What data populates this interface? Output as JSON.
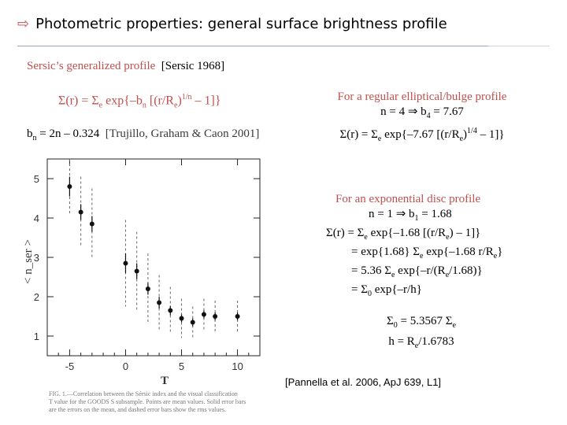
{
  "title": {
    "arrow": "⇨",
    "text": "Photometric properties: general surface brightness profile"
  },
  "subtitle": {
    "name": "Sersic’s generalized profile",
    "cite": "[Sersic 1968]"
  },
  "main_equation": {
    "a": "Σ(r) = Σ",
    "a_sub": "e",
    "b": " exp{–b",
    "b_sub": "n",
    "c": " [(r/R",
    "c_sub": "e",
    "d": ")",
    "d_sup": "1/n",
    "e": " – 1]}"
  },
  "bn": {
    "a": "b",
    "a_sub": "n",
    "b": " = 2n – 0.324",
    "cite": "[Trujillo, Graham & Caon 2001]"
  },
  "elliptical": {
    "heading": "For a regular elliptical/bulge profile",
    "l2a": "n = 4  ⇒  b",
    "l2_sub": "4",
    "l2b": " = 7.67",
    "l3a": "Σ(r) = Σ",
    "l3_sub1": "e",
    "l3b": " exp{–7.67 [(r/R",
    "l3_sub2": "e",
    "l3c": ")",
    "l3_sup": "1/4",
    "l3d": " – 1]}"
  },
  "exponential": {
    "heading": "For an exponential disc profile",
    "l2a": "n = 1  ⇒  b",
    "l2_sub": "1",
    "l2b": " = 1.68",
    "l3a": "Σ(r) = Σ",
    "l3_sub1": "e",
    "l3b": " exp{–1.68 [(r/R",
    "l3_sub2": "e",
    "l3c": ") – 1]}",
    "l4a": "= exp{1.68} Σ",
    "l4_sub": "e",
    "l4b": " exp{–1.68 r/R",
    "l4_sub2": "e",
    "l4c": "}",
    "l5a": "= 5.36 Σ",
    "l5_sub": "e",
    "l5b": " exp{–r/(R",
    "l5_sub2": "e",
    "l5c": "/1.68)}",
    "l6a": "= Σ",
    "l6_sub": "0",
    "l6b": " exp{–r/h}"
  },
  "sigma0": {
    "l1a": "Σ",
    "l1_sub": "0",
    "l1b": " = 5.3567 Σ",
    "l1_sub2": "e",
    "l2a": "h = R",
    "l2_sub": "e",
    "l2b": "/1.6783"
  },
  "reference": "[Pannella et al. 2006, ApJ 639, L1]",
  "chart_data": {
    "type": "scatter",
    "xlabel": "T",
    "ylabel": "< n_ser >",
    "xlim": [
      -7,
      12
    ],
    "ylim": [
      0.5,
      5.5
    ],
    "x_ticks": [
      "-5",
      "0",
      "5",
      "10"
    ],
    "y_ticks": [
      "1",
      "2",
      "3",
      "4",
      "5"
    ],
    "points": [
      {
        "x": -5,
        "y": 4.8,
        "err": 0.25,
        "rms": 0.7
      },
      {
        "x": -4,
        "y": 4.15,
        "err": 0.2,
        "rms": 0.9
      },
      {
        "x": -3,
        "y": 3.85,
        "err": 0.2,
        "rms": 0.9
      },
      {
        "x": 0,
        "y": 2.85,
        "err": 0.25,
        "rms": 1.1
      },
      {
        "x": 1,
        "y": 2.65,
        "err": 0.2,
        "rms": 1.0
      },
      {
        "x": 2,
        "y": 2.2,
        "err": 0.15,
        "rms": 0.9
      },
      {
        "x": 3,
        "y": 1.85,
        "err": 0.15,
        "rms": 0.7
      },
      {
        "x": 4,
        "y": 1.65,
        "err": 0.12,
        "rms": 0.6
      },
      {
        "x": 5,
        "y": 1.45,
        "err": 0.1,
        "rms": 0.5
      },
      {
        "x": 6,
        "y": 1.35,
        "err": 0.1,
        "rms": 0.4
      },
      {
        "x": 7,
        "y": 1.55,
        "err": 0.1,
        "rms": 0.4
      },
      {
        "x": 8,
        "y": 1.5,
        "err": 0.1,
        "rms": 0.4
      },
      {
        "x": 10,
        "y": 1.5,
        "err": 0.1,
        "rms": 0.4
      }
    ]
  },
  "caption": {
    "lines": [
      "FIG. 1.—Correlation between the Sérsic index and the visual classification",
      "T value for the GOODS S subsample. Points are mean values. Solid error bars",
      "are the errors on the mean, and dashed error bars show the rms values."
    ]
  }
}
